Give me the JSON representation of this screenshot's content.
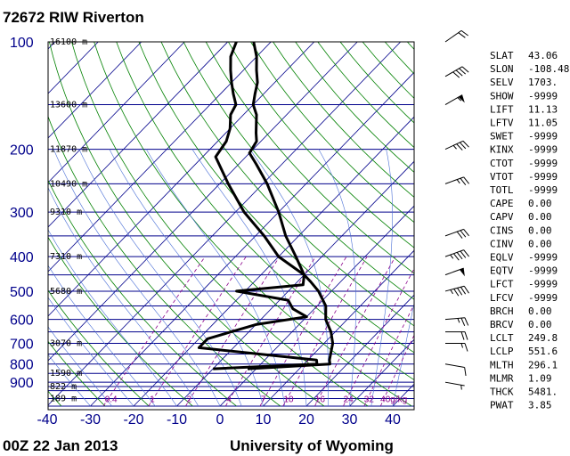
{
  "header": {
    "title": "72672 RIW Riverton"
  },
  "footer": {
    "time": "00Z 22 Jan 2013",
    "source": "University of Wyoming"
  },
  "chart_data": {
    "type": "skew-t log-p sounding",
    "p_ticks": [
      100,
      200,
      300,
      400,
      500,
      600,
      700,
      800,
      900
    ],
    "t_ticks": [
      -40,
      -30,
      -20,
      -10,
      0,
      10,
      20,
      30,
      40
    ],
    "p_range": [
      100,
      1050
    ],
    "t_range_at_bottom": [
      -40,
      45
    ],
    "height_labels": [
      {
        "p": 100,
        "text": "16100 m"
      },
      {
        "p": 150,
        "text": "13600 m"
      },
      {
        "p": 200,
        "text": "11870 m"
      },
      {
        "p": 250,
        "text": "10490 m"
      },
      {
        "p": 300,
        "text": "9310 m"
      },
      {
        "p": 400,
        "text": "7310 m"
      },
      {
        "p": 500,
        "text": "5680 m"
      },
      {
        "p": 700,
        "text": "3070 m"
      },
      {
        "p": 850,
        "text": "1590 m"
      },
      {
        "p": 925,
        "text": "822 m"
      },
      {
        "p": 1000,
        "text": "189 m"
      }
    ],
    "mixing_ratio_labels": [
      "0.4",
      "1",
      "2",
      "4",
      "7",
      "10",
      "16",
      "24",
      "32",
      "40g/kg"
    ],
    "temperature": [
      {
        "p": 825,
        "t": -2
      },
      {
        "p": 800,
        "t": 16
      },
      {
        "p": 780,
        "t": 15
      },
      {
        "p": 700,
        "t": 12
      },
      {
        "p": 650,
        "t": 9
      },
      {
        "p": 600,
        "t": 5
      },
      {
        "p": 550,
        "t": 2
      },
      {
        "p": 500,
        "t": -3
      },
      {
        "p": 470,
        "t": -7
      },
      {
        "p": 450,
        "t": -10
      },
      {
        "p": 400,
        "t": -16
      },
      {
        "p": 350,
        "t": -23
      },
      {
        "p": 300,
        "t": -30
      },
      {
        "p": 250,
        "t": -39
      },
      {
        "p": 220,
        "t": -46
      },
      {
        "p": 205,
        "t": -50
      },
      {
        "p": 190,
        "t": -51
      },
      {
        "p": 180,
        "t": -53
      },
      {
        "p": 160,
        "t": -57
      },
      {
        "p": 150,
        "t": -60
      },
      {
        "p": 140,
        "t": -62
      },
      {
        "p": 130,
        "t": -64
      },
      {
        "p": 120,
        "t": -67
      },
      {
        "p": 110,
        "t": -70
      },
      {
        "p": 100,
        "t": -74
      }
    ],
    "dewpoint": [
      {
        "p": 825,
        "t": -10
      },
      {
        "p": 800,
        "t": 13
      },
      {
        "p": 780,
        "t": 12
      },
      {
        "p": 720,
        "t": -18
      },
      {
        "p": 680,
        "t": -18
      },
      {
        "p": 620,
        "t": -10
      },
      {
        "p": 590,
        "t": 0
      },
      {
        "p": 560,
        "t": -5
      },
      {
        "p": 530,
        "t": -8
      },
      {
        "p": 500,
        "t": -22
      },
      {
        "p": 480,
        "t": -8
      },
      {
        "p": 450,
        "t": -10
      },
      {
        "p": 400,
        "t": -20
      },
      {
        "p": 350,
        "t": -28
      },
      {
        "p": 300,
        "t": -38
      },
      {
        "p": 250,
        "t": -48
      },
      {
        "p": 210,
        "t": -57
      },
      {
        "p": 190,
        "t": -58
      },
      {
        "p": 175,
        "t": -60
      },
      {
        "p": 160,
        "t": -63
      },
      {
        "p": 150,
        "t": -64
      },
      {
        "p": 140,
        "t": -67
      },
      {
        "p": 130,
        "t": -70
      },
      {
        "p": 120,
        "t": -73
      },
      {
        "p": 110,
        "t": -76
      },
      {
        "p": 100,
        "t": -78
      }
    ],
    "wind_barbs": [
      {
        "p": 100,
        "dir": 235,
        "kt": 20
      },
      {
        "p": 125,
        "dir": 240,
        "kt": 40
      },
      {
        "p": 150,
        "dir": 240,
        "kt": 55
      },
      {
        "p": 200,
        "dir": 245,
        "kt": 35
      },
      {
        "p": 250,
        "dir": 250,
        "kt": 25
      },
      {
        "p": 350,
        "dir": 250,
        "kt": 30
      },
      {
        "p": 400,
        "dir": 250,
        "kt": 45
      },
      {
        "p": 450,
        "dir": 250,
        "kt": 50
      },
      {
        "p": 500,
        "dir": 255,
        "kt": 45
      },
      {
        "p": 600,
        "dir": 265,
        "kt": 25
      },
      {
        "p": 650,
        "dir": 270,
        "kt": 20
      },
      {
        "p": 700,
        "dir": 270,
        "kt": 15
      },
      {
        "p": 800,
        "dir": 280,
        "kt": 10
      },
      {
        "p": 900,
        "dir": 280,
        "kt": 5
      }
    ],
    "indices": [
      {
        "name": "SLAT",
        "value": "43.06"
      },
      {
        "name": "SLON",
        "value": "-108.48"
      },
      {
        "name": "SELV",
        "value": "1703."
      },
      {
        "name": "SHOW",
        "value": "-9999"
      },
      {
        "name": "LIFT",
        "value": "11.13"
      },
      {
        "name": "LFTV",
        "value": "11.05"
      },
      {
        "name": "SWET",
        "value": "-9999"
      },
      {
        "name": "KINX",
        "value": "-9999"
      },
      {
        "name": "CTOT",
        "value": "-9999"
      },
      {
        "name": "VTOT",
        "value": "-9999"
      },
      {
        "name": "TOTL",
        "value": "-9999"
      },
      {
        "name": "CAPE",
        "value": "0.00"
      },
      {
        "name": "CAPV",
        "value": "0.00"
      },
      {
        "name": "CINS",
        "value": "0.00"
      },
      {
        "name": "CINV",
        "value": "0.00"
      },
      {
        "name": "EQLV",
        "value": "-9999"
      },
      {
        "name": "EQTV",
        "value": "-9999"
      },
      {
        "name": "LFCT",
        "value": "-9999"
      },
      {
        "name": "LFCV",
        "value": "-9999"
      },
      {
        "name": "BRCH",
        "value": "0.00"
      },
      {
        "name": "BRCV",
        "value": "0.00"
      },
      {
        "name": "LCLT",
        "value": "249.8"
      },
      {
        "name": "LCLP",
        "value": "551.6"
      },
      {
        "name": "MLTH",
        "value": "296.1"
      },
      {
        "name": "MLMR",
        "value": "1.09"
      },
      {
        "name": "THCK",
        "value": "5481."
      },
      {
        "name": "PWAT",
        "value": "3.85"
      }
    ]
  }
}
